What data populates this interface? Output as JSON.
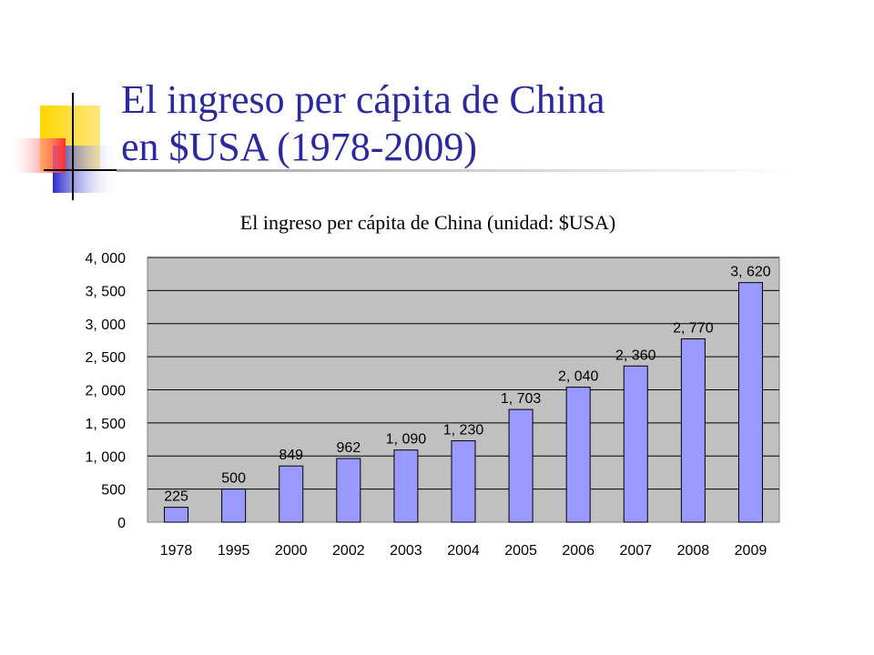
{
  "slide": {
    "title_line1": "El ingreso per cápita de China",
    "title_line2": "en $USA (1978-2009)"
  },
  "colors": {
    "title_text": "#2a2a9e",
    "plot_background": "#c0c0c0",
    "bar_fill": "#9999ff",
    "bar_stroke": "#000000",
    "deco_yellow": "#ffd700",
    "deco_red": "#ff4040",
    "deco_blue": "#3333cc"
  },
  "chart_data": {
    "type": "bar",
    "title": "El ingreso per cápita de China (unidad: $USA)",
    "xlabel": "",
    "ylabel": "",
    "categories": [
      "1978",
      "1995",
      "2000",
      "2002",
      "2003",
      "2004",
      "2005",
      "2006",
      "2007",
      "2008",
      "2009"
    ],
    "values": [
      225,
      500,
      849,
      962,
      1090,
      1230,
      1703,
      2040,
      2360,
      2770,
      3620
    ],
    "value_labels": [
      "225",
      "500",
      "849",
      "962",
      "1, 090",
      "1, 230",
      "1, 703",
      "2, 040",
      "2, 360",
      "2, 770",
      "3, 620"
    ],
    "ylim": [
      0,
      4000
    ],
    "yticks": [
      0,
      500,
      1000,
      1500,
      2000,
      2500,
      3000,
      3500,
      4000
    ],
    "ytick_labels": [
      "0",
      "500",
      "1, 000",
      "1, 500",
      "2, 000",
      "2, 500",
      "3, 000",
      "3, 500",
      "4, 000"
    ],
    "grid": true,
    "legend": "none"
  }
}
